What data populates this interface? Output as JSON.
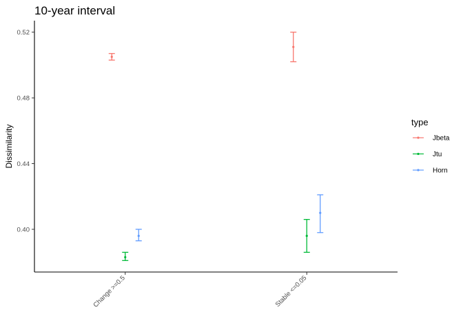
{
  "chart_data": {
    "type": "errorbar-dot",
    "title": "10-year interval",
    "xlabel": "",
    "ylabel": "Dissimilarity",
    "categories": [
      "Change >=0.5",
      "Stable <=0.05"
    ],
    "ylim": [
      0.374,
      0.527
    ],
    "yticks": [
      0.4,
      0.44,
      0.48,
      0.52
    ],
    "ytick_labels": [
      "0.40",
      "0.44",
      "0.48",
      "0.52"
    ],
    "grid": false,
    "legend": {
      "title": "type",
      "position": "right"
    },
    "series": [
      {
        "name": "Jbeta",
        "color": "#F8766D",
        "values": [
          0.505,
          0.511
        ],
        "lower": [
          0.503,
          0.502
        ],
        "upper": [
          0.507,
          0.52
        ]
      },
      {
        "name": "Jtu",
        "color": "#00BA38",
        "values": [
          0.383,
          0.396
        ],
        "lower": [
          0.381,
          0.386
        ],
        "upper": [
          0.386,
          0.406
        ]
      },
      {
        "name": "Horn",
        "color": "#619CFF",
        "values": [
          0.396,
          0.41
        ],
        "lower": [
          0.393,
          0.398
        ],
        "upper": [
          0.4,
          0.421
        ]
      }
    ]
  }
}
